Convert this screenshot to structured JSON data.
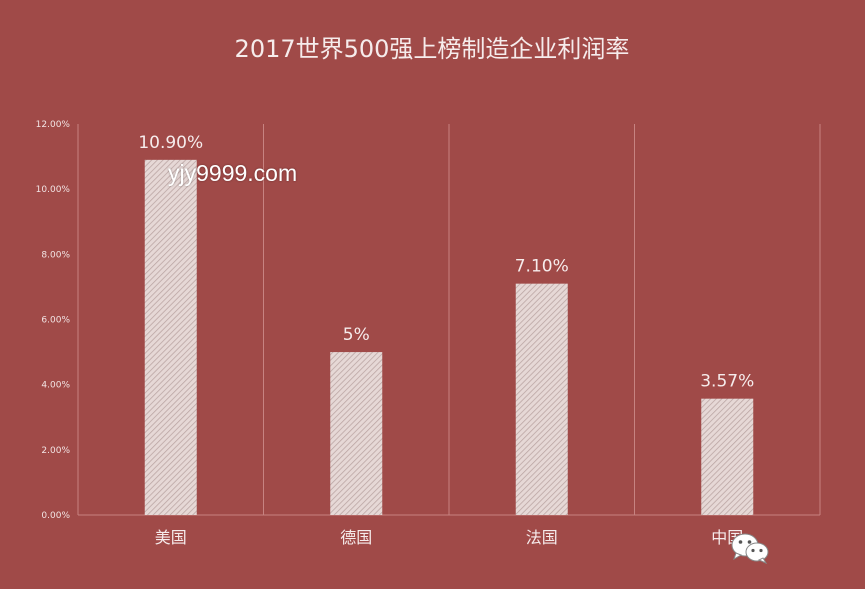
{
  "chart_data": {
    "type": "bar",
    "title": "2017世界500强上榜制造企业利润率",
    "categories": [
      "美国",
      "德国",
      "法国",
      "中国"
    ],
    "values": [
      10.9,
      5,
      7.1,
      3.57
    ],
    "data_labels": [
      "10.90%",
      "5%",
      "7.10%",
      "3.57%"
    ],
    "y_ticks": [
      "0.00%",
      "2.00%",
      "4.00%",
      "6.00%",
      "8.00%",
      "10.00%",
      "12.00%"
    ],
    "ylim": [
      0,
      12
    ],
    "grid": "vertical separators",
    "legend": "none"
  },
  "watermark_text": "yjy9999.com",
  "colors": {
    "background": "#a04a48",
    "bar_fill": "#e6d8d6",
    "bar_hatch": "#b9a3a1",
    "gridline": "#c78381",
    "text": "#f6ecec"
  },
  "icons": {
    "logo": "wechat-icon"
  }
}
